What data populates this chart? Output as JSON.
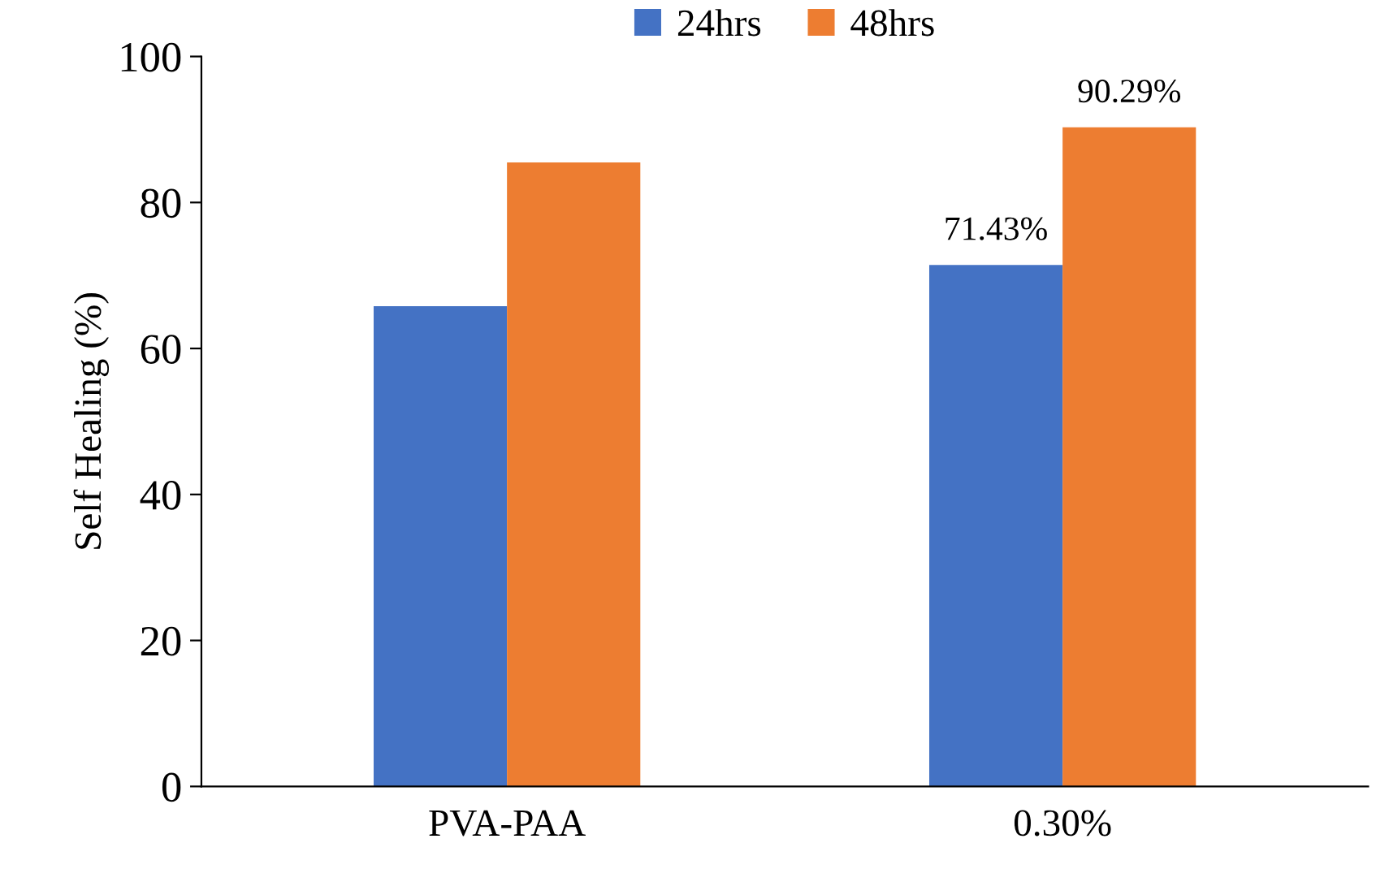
{
  "chart_data": {
    "type": "bar",
    "ylabel": "Self Healing (%)",
    "categories": [
      "PVA-PAA",
      "0.30%"
    ],
    "series": [
      {
        "name": "24hrs",
        "color": "#4472c4",
        "values": [
          65.8,
          71.43
        ],
        "value_labels": [
          null,
          "71.43%"
        ]
      },
      {
        "name": "48hrs",
        "color": "#ed7d31",
        "values": [
          85.5,
          90.29
        ],
        "value_labels": [
          null,
          "90.29%"
        ]
      }
    ],
    "ylim": [
      0,
      100
    ],
    "yticks": [
      0,
      20,
      40,
      60,
      80,
      100
    ],
    "grid": false,
    "legend": "top"
  }
}
